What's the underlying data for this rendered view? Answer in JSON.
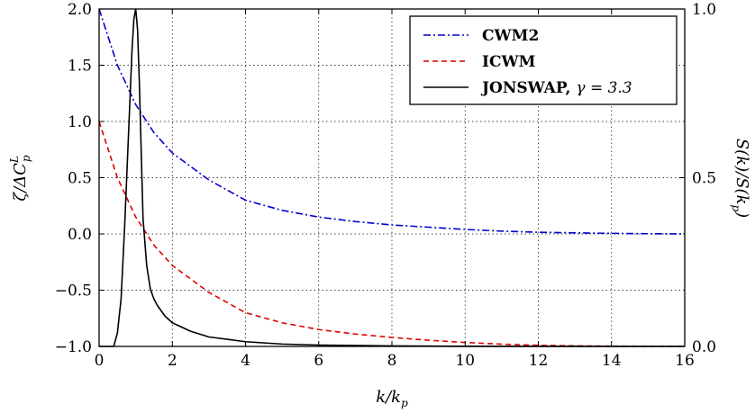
{
  "chart_data": {
    "type": "line",
    "xlabel": "k/k",
    "xlabel_sub": "p",
    "ylabel_left": {
      "main": "ζ/ΔC",
      "sup": "L",
      "sub": "p"
    },
    "ylabel_right": {
      "pre": "S(k)/S(k",
      "sub": "p",
      "post": ")"
    },
    "xlim": [
      0,
      16
    ],
    "ylim_left": [
      -1.0,
      2.0
    ],
    "ylim_right": [
      0.0,
      1.0
    ],
    "x_ticks": [
      "0",
      "2",
      "4",
      "6",
      "8",
      "10",
      "12",
      "14",
      "16"
    ],
    "y_ticks_left": [
      "−1.0",
      "−0.5",
      "0.0",
      "0.5",
      "1.0",
      "1.5",
      "2.0"
    ],
    "y_ticks_right": [
      "0.0",
      "0.5",
      "1.0"
    ],
    "grid": true,
    "legend_placement": "top-right",
    "series": [
      {
        "name": "CWM2",
        "axis": "left",
        "style": "dashdot",
        "color": "#0000cc",
        "x": [
          0,
          0.5,
          1,
          1.5,
          2,
          3,
          4,
          5,
          6,
          7,
          8,
          9,
          10,
          11,
          12,
          13,
          14,
          15,
          16
        ],
        "y": [
          2.0,
          1.5,
          1.15,
          0.9,
          0.72,
          0.48,
          0.3,
          0.21,
          0.15,
          0.11,
          0.08,
          0.06,
          0.04,
          0.025,
          0.015,
          0.01,
          0.005,
          0.002,
          0.0
        ]
      },
      {
        "name": "ICWM",
        "axis": "left",
        "style": "dashed",
        "color": "#dd0000",
        "x": [
          0,
          0.5,
          1,
          1.5,
          2,
          3,
          4,
          5,
          6,
          7,
          8,
          9,
          10,
          11,
          12,
          13,
          14,
          15,
          16
        ],
        "y": [
          1.0,
          0.5,
          0.15,
          -0.1,
          -0.28,
          -0.52,
          -0.7,
          -0.79,
          -0.85,
          -0.89,
          -0.92,
          -0.945,
          -0.965,
          -0.98,
          -0.99,
          -0.995,
          -0.998,
          -1.0,
          -1.0
        ]
      },
      {
        "name": "JONSWAP,",
        "name_math": "γ = 3.3",
        "axis": "right",
        "style": "solid",
        "color": "#000000",
        "x": [
          0,
          0.4,
          0.5,
          0.6,
          0.7,
          0.8,
          0.9,
          0.95,
          1.0,
          1.05,
          1.1,
          1.2,
          1.3,
          1.4,
          1.5,
          1.6,
          1.8,
          2.0,
          2.5,
          3.0,
          4.0,
          5.0,
          6.0,
          8.0,
          10.0,
          16.0
        ],
        "y": [
          0.0,
          0.0,
          0.04,
          0.14,
          0.36,
          0.62,
          0.88,
          0.97,
          1.0,
          0.94,
          0.78,
          0.38,
          0.24,
          0.17,
          0.14,
          0.12,
          0.09,
          0.07,
          0.045,
          0.028,
          0.014,
          0.007,
          0.004,
          0.0015,
          0.0005,
          0.0
        ]
      }
    ]
  }
}
